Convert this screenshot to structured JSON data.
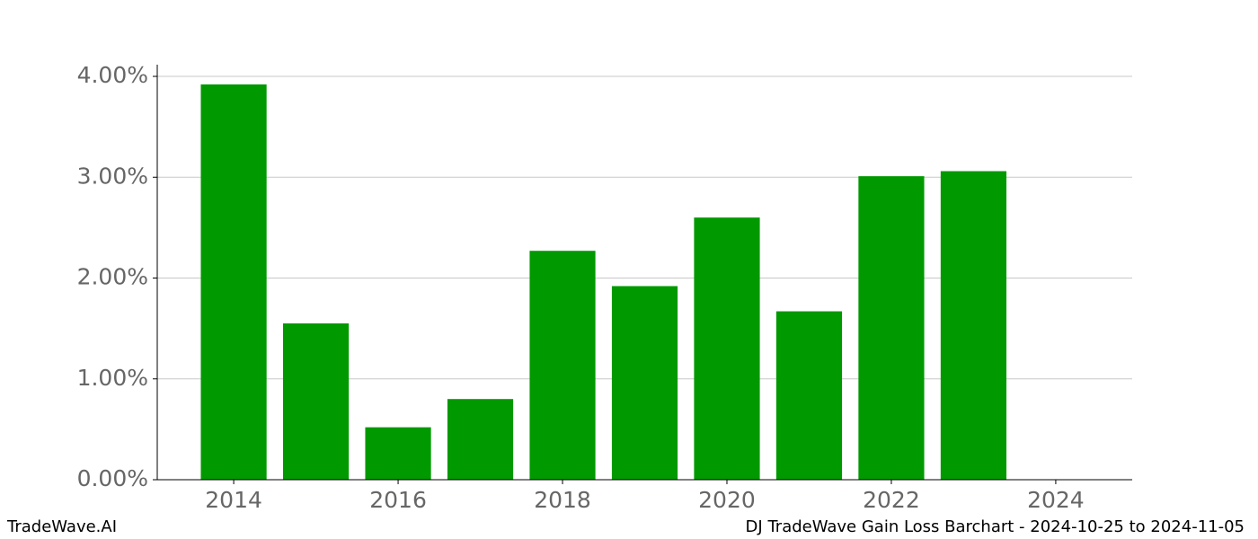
{
  "chart_data": {
    "type": "bar",
    "title": "DJ TradeWave Gain Loss Barchart - 2024-10-25 to 2024-11-05",
    "watermark": "TradeWave.AI",
    "x": [
      2014,
      2015,
      2016,
      2017,
      2018,
      2019,
      2020,
      2021,
      2022,
      2023
    ],
    "values": [
      3.92,
      1.55,
      0.52,
      0.8,
      2.27,
      1.92,
      2.6,
      1.67,
      3.01,
      3.06
    ],
    "color": "#009900",
    "bar_width": 0.8,
    "xlim": [
      2013.07,
      2024.93
    ],
    "xticks": [
      2014,
      2016,
      2018,
      2020,
      2022,
      2024
    ],
    "ylim": [
      0,
      4.116
    ],
    "yticks": [
      {
        "value": 0,
        "label": "0.00%"
      },
      {
        "value": 1,
        "label": "1.00%"
      },
      {
        "value": 2,
        "label": "2.00%"
      },
      {
        "value": 3,
        "label": "3.00%"
      },
      {
        "value": 4,
        "label": "4.00%"
      }
    ],
    "grid": true
  }
}
